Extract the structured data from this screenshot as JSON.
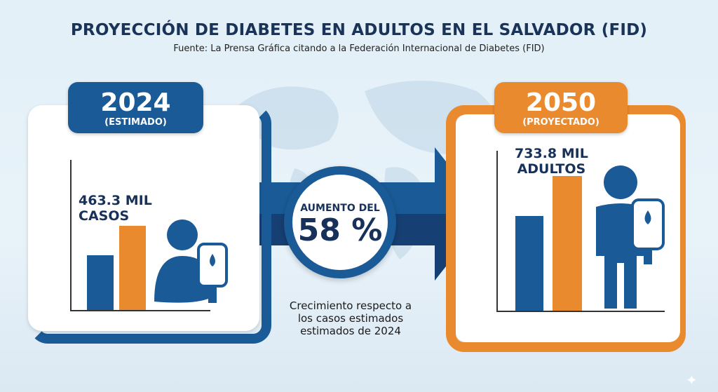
{
  "header": {
    "title": "PROYECCIÓN DE DIABETES EN ADULTOS EN EL SALVADOR (FID)",
    "source": "Fuente: La Prensa Gráfica citando a la Federación Internacional de Diabetes (FID)"
  },
  "left": {
    "year": "2024",
    "label": "(ESTIMADO)",
    "value_line1": "463.3 MIL",
    "value_line2": "CASOS"
  },
  "right": {
    "year": "2050",
    "label": "(PROYECTADO)",
    "value_line1": "733.8 MIL",
    "value_line2": "ADULTOS"
  },
  "center": {
    "label": "AUMENTO DEL",
    "percent": "58 %",
    "caption": "Crecimiento respecto a los casos estimados estimados de 2024"
  },
  "colors": {
    "blue": "#1a5a96",
    "navy": "#17315a",
    "orange": "#ea8a2e"
  }
}
